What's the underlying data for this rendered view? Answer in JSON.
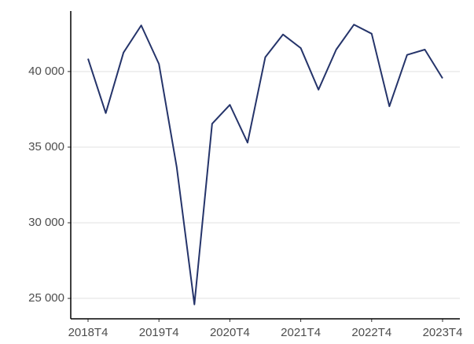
{
  "chart_data": {
    "type": "line",
    "categories": [
      "2018T4",
      null,
      null,
      null,
      "2019T4",
      null,
      null,
      null,
      "2020T4",
      null,
      null,
      null,
      "2021T4",
      null,
      null,
      null,
      "2022T4",
      null,
      null,
      null,
      "2023T4"
    ],
    "values": [
      40850,
      37250,
      41250,
      43050,
      40500,
      33700,
      24600,
      36550,
      37800,
      35300,
      40950,
      42450,
      41550,
      38800,
      41450,
      43100,
      42500,
      37700,
      41100,
      41450,
      39550
    ],
    "color": "#25346a",
    "ylim": [
      23650,
      44000
    ],
    "yticks": [
      {
        "value": 25000,
        "label": "25 000"
      },
      {
        "value": 30000,
        "label": "30 000"
      },
      {
        "value": 35000,
        "label": "35 000"
      },
      {
        "value": 40000,
        "label": "40 000"
      }
    ],
    "grid": true
  }
}
